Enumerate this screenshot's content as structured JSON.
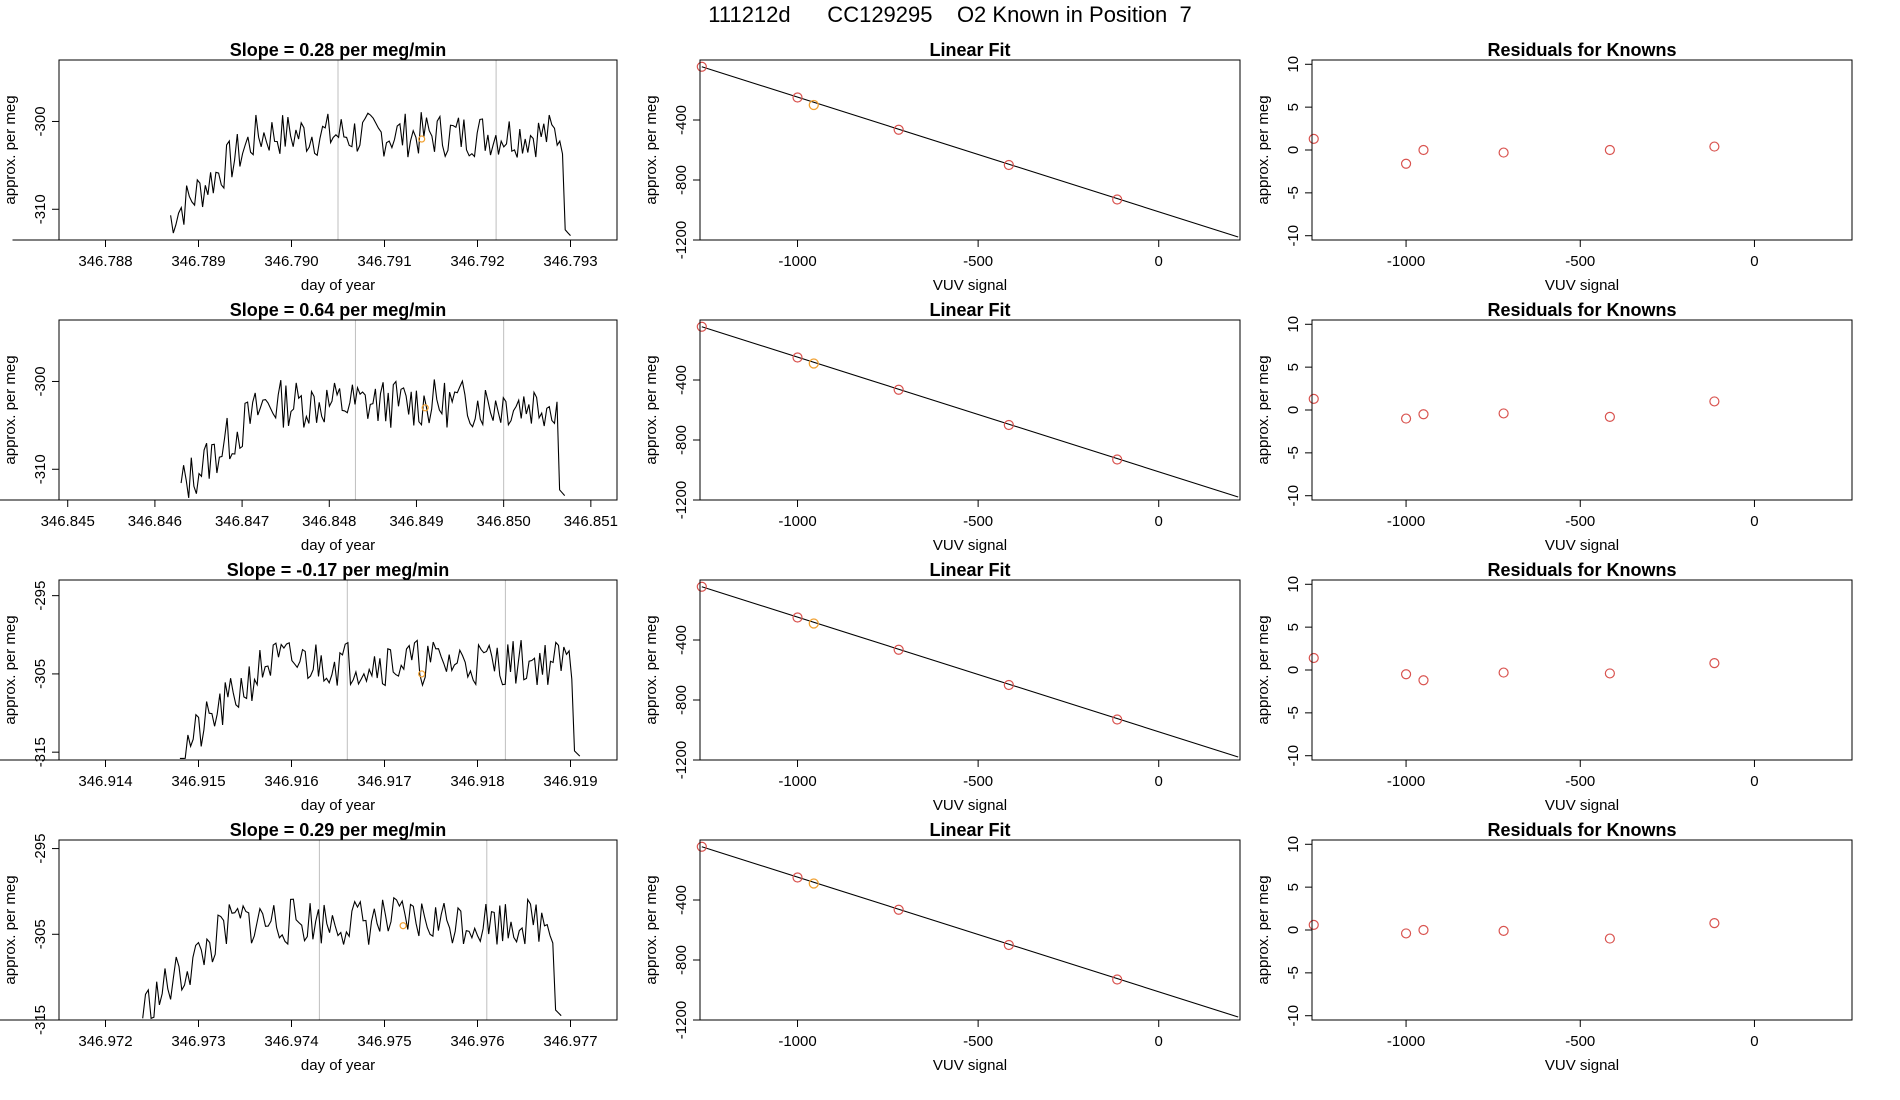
{
  "page_title": "111212d      CC129295    O2 Known in Position  7",
  "colors": {
    "axis": "#000000",
    "line": "#000000",
    "marker": "#d9534f",
    "highlight": "#f0a030",
    "vline": "#bfbfbf"
  },
  "chart_data": [
    {
      "type": "line",
      "title": "Slope =  0.28  per meg/min",
      "xlabel": "day of year",
      "ylabel": "approx. per meg",
      "xlim": [
        346.7875,
        346.7935
      ],
      "ylim": [
        -313.5,
        -293
      ],
      "xticks": [
        346.788,
        346.789,
        346.79,
        346.791,
        346.792,
        346.793
      ],
      "xtick_labels": [
        "346.788",
        "346.789",
        "346.790",
        "346.791",
        "346.792",
        "346.793"
      ],
      "yticks": [
        -310,
        -300
      ],
      "ytick_labels": [
        "-310",
        "-300"
      ],
      "vlines": [
        346.7905,
        346.7922
      ],
      "highlight_point": [
        346.7914,
        -302.0
      ],
      "series": {
        "x_start": 346.7887,
        "x_end": 346.793,
        "seed": 7,
        "base": -301.5,
        "ramp_from": -311,
        "noise": 2.6
      },
      "tail": {
        "x": [
          346.787,
          346.7887
        ],
        "y": -313.5
      }
    },
    {
      "type": "line",
      "title": "Slope =  0.64  per meg/min",
      "xlabel": "day of year",
      "ylabel": "approx. per meg",
      "xlim": [
        346.8449,
        346.8513
      ],
      "ylim": [
        -313.5,
        -293
      ],
      "xticks": [
        346.845,
        346.846,
        346.847,
        346.848,
        346.849,
        346.85,
        346.851
      ],
      "xtick_labels": [
        "346.845",
        "346.846",
        "346.847",
        "346.848",
        "346.849",
        "346.850",
        "346.851"
      ],
      "yticks": [
        -310,
        -300
      ],
      "ytick_labels": [
        "-310",
        "-300"
      ],
      "vlines": [
        346.8483,
        346.85
      ],
      "highlight_point": [
        346.8491,
        -303.0
      ],
      "series": {
        "x_start": 346.8463,
        "x_end": 346.8507,
        "seed": 13,
        "base": -302.5,
        "ramp_from": -312,
        "noise": 2.8
      },
      "tail": {
        "x": [
          346.844,
          346.8463
        ],
        "y": -313.5
      }
    },
    {
      "type": "line",
      "title": "Slope =  -0.17  per meg/min",
      "xlabel": "day of year",
      "ylabel": "approx. per meg",
      "xlim": [
        346.9135,
        346.9195
      ],
      "ylim": [
        -316,
        -293
      ],
      "xticks": [
        346.914,
        346.915,
        346.916,
        346.917,
        346.918,
        346.919
      ],
      "xtick_labels": [
        "346.914",
        "346.915",
        "346.916",
        "346.917",
        "346.918",
        "346.919"
      ],
      "yticks": [
        -315,
        -305,
        -295
      ],
      "ytick_labels": [
        "-315",
        "-305",
        "-295"
      ],
      "vlines": [
        346.9166,
        346.9183
      ],
      "highlight_point": [
        346.9174,
        -305.0
      ],
      "series": {
        "x_start": 346.9148,
        "x_end": 346.9191,
        "seed": 21,
        "base": -303.5,
        "ramp_from": -315,
        "noise": 3.0
      },
      "tail": {
        "x": [
          346.9125,
          346.9148
        ],
        "y": -316
      }
    },
    {
      "type": "line",
      "title": "Slope =  0.29  per meg/min",
      "xlabel": "day of year",
      "ylabel": "approx. per meg",
      "xlim": [
        346.9715,
        346.9775
      ],
      "ylim": [
        -315,
        -294
      ],
      "xticks": [
        346.972,
        346.973,
        346.974,
        346.975,
        346.976,
        346.977
      ],
      "xtick_labels": [
        "346.972",
        "346.973",
        "346.974",
        "346.975",
        "346.976",
        "346.977"
      ],
      "yticks": [
        -315,
        -305,
        -295
      ],
      "ytick_labels": [
        "-315",
        "-305",
        "-295"
      ],
      "vlines": [
        346.9743,
        346.9761
      ],
      "highlight_point": [
        346.9752,
        -304.0
      ],
      "series": {
        "x_start": 346.9724,
        "x_end": 346.9769,
        "seed": 33,
        "base": -303.5,
        "ramp_from": -314,
        "noise": 2.8
      },
      "tail": {
        "x": [
          346.9705,
          346.9724
        ],
        "y": -315
      }
    },
    {
      "type": "scatter",
      "title": "Linear Fit",
      "xlabel": "VUV signal",
      "ylabel": "approx. per meg",
      "xlim": [
        -1270,
        225
      ],
      "ylim": [
        -1200,
        0
      ],
      "xticks": [
        -1000,
        -500,
        0
      ],
      "xtick_labels": [
        "-1000",
        "-500",
        "0"
      ],
      "yticks": [
        -1200,
        -800,
        -400
      ],
      "ytick_labels": [
        "-1200",
        "-800",
        "-400"
      ],
      "fit_line": {
        "x": [
          -1265,
          220
        ],
        "y": [
          -45,
          -1180
        ]
      },
      "points_x": [
        -1265,
        -1000,
        -720,
        -415,
        -115
      ],
      "points_y": [
        -45,
        -250,
        -465,
        -700,
        -930
      ],
      "highlight_x": -955,
      "highlight_y": -300
    },
    {
      "type": "scatter",
      "title": "Linear Fit",
      "xlabel": "VUV signal",
      "ylabel": "approx. per meg",
      "xlim": [
        -1270,
        225
      ],
      "ylim": [
        -1200,
        0
      ],
      "xticks": [
        -1000,
        -500,
        0
      ],
      "xtick_labels": [
        "-1000",
        "-500",
        "0"
      ],
      "yticks": [
        -1200,
        -800,
        -400
      ],
      "ytick_labels": [
        "-1200",
        "-800",
        "-400"
      ],
      "fit_line": {
        "x": [
          -1265,
          220
        ],
        "y": [
          -45,
          -1180
        ]
      },
      "points_x": [
        -1265,
        -1000,
        -720,
        -415,
        -115
      ],
      "points_y": [
        -45,
        -250,
        -465,
        -700,
        -930
      ],
      "highlight_x": -955,
      "highlight_y": -290
    },
    {
      "type": "scatter",
      "title": "Linear Fit",
      "xlabel": "VUV signal",
      "ylabel": "approx. per meg",
      "xlim": [
        -1270,
        225
      ],
      "ylim": [
        -1200,
        0
      ],
      "xticks": [
        -1000,
        -500,
        0
      ],
      "xtick_labels": [
        "-1000",
        "-500",
        "0"
      ],
      "yticks": [
        -1200,
        -800,
        -400
      ],
      "ytick_labels": [
        "-1200",
        "-800",
        "-400"
      ],
      "fit_line": {
        "x": [
          -1265,
          220
        ],
        "y": [
          -45,
          -1180
        ]
      },
      "points_x": [
        -1265,
        -1000,
        -720,
        -415,
        -115
      ],
      "points_y": [
        -45,
        -250,
        -465,
        -700,
        -930
      ],
      "highlight_x": -955,
      "highlight_y": -290
    },
    {
      "type": "scatter",
      "title": "Linear Fit",
      "xlabel": "VUV signal",
      "ylabel": "approx. per meg",
      "xlim": [
        -1270,
        225
      ],
      "ylim": [
        -1200,
        0
      ],
      "xticks": [
        -1000,
        -500,
        0
      ],
      "xtick_labels": [
        "-1000",
        "-500",
        "0"
      ],
      "yticks": [
        -1200,
        -800,
        -400
      ],
      "ytick_labels": [
        "-1200",
        "-800",
        "-400"
      ],
      "fit_line": {
        "x": [
          -1265,
          220
        ],
        "y": [
          -45,
          -1180
        ]
      },
      "points_x": [
        -1265,
        -1000,
        -720,
        -415,
        -115
      ],
      "points_y": [
        -45,
        -250,
        -465,
        -700,
        -930
      ],
      "highlight_x": -955,
      "highlight_y": -290
    },
    {
      "type": "scatter",
      "title": "Residuals for Knowns",
      "xlabel": "VUV signal",
      "ylabel": "approx. per meg",
      "xlim": [
        -1270,
        280
      ],
      "ylim": [
        -10.5,
        10.5
      ],
      "xticks": [
        -1000,
        -500,
        0
      ],
      "xtick_labels": [
        "-1000",
        "-500",
        "0"
      ],
      "yticks": [
        -10,
        -5,
        0,
        5,
        10
      ],
      "ytick_labels": [
        "-10",
        "-5",
        "0",
        "5",
        "10"
      ],
      "points_x": [
        -1265,
        -1000,
        -950,
        -720,
        -415,
        -115
      ],
      "points_y": [
        1.3,
        -1.6,
        0.0,
        -0.3,
        0.0,
        0.4
      ]
    },
    {
      "type": "scatter",
      "title": "Residuals for Knowns",
      "xlabel": "VUV signal",
      "ylabel": "approx. per meg",
      "xlim": [
        -1270,
        280
      ],
      "ylim": [
        -10.5,
        10.5
      ],
      "xticks": [
        -1000,
        -500,
        0
      ],
      "xtick_labels": [
        "-1000",
        "-500",
        "0"
      ],
      "yticks": [
        -10,
        -5,
        0,
        5,
        10
      ],
      "ytick_labels": [
        "-10",
        "-5",
        "0",
        "5",
        "10"
      ],
      "points_x": [
        -1265,
        -1000,
        -950,
        -720,
        -415,
        -115
      ],
      "points_y": [
        1.3,
        -1.0,
        -0.5,
        -0.4,
        -0.8,
        1.0
      ]
    },
    {
      "type": "scatter",
      "title": "Residuals for Knowns",
      "xlabel": "VUV signal",
      "ylabel": "approx. per meg",
      "xlim": [
        -1270,
        280
      ],
      "ylim": [
        -10.5,
        10.5
      ],
      "xticks": [
        -1000,
        -500,
        0
      ],
      "xtick_labels": [
        "-1000",
        "-500",
        "0"
      ],
      "yticks": [
        -10,
        -5,
        0,
        5,
        10
      ],
      "ytick_labels": [
        "-10",
        "-5",
        "0",
        "5",
        "10"
      ],
      "points_x": [
        -1265,
        -1000,
        -950,
        -720,
        -415,
        -115
      ],
      "points_y": [
        1.4,
        -0.5,
        -1.2,
        -0.3,
        -0.4,
        0.8
      ]
    },
    {
      "type": "scatter",
      "title": "Residuals for Knowns",
      "xlabel": "VUV signal",
      "ylabel": "approx. per meg",
      "xlim": [
        -1270,
        280
      ],
      "ylim": [
        -10.5,
        10.5
      ],
      "xticks": [
        -1000,
        -500,
        0
      ],
      "xtick_labels": [
        "-1000",
        "-500",
        "0"
      ],
      "yticks": [
        -10,
        -5,
        0,
        5,
        10
      ],
      "ytick_labels": [
        "-10",
        "-5",
        "0",
        "5",
        "10"
      ],
      "points_x": [
        -1265,
        -1000,
        -950,
        -720,
        -415,
        -115
      ],
      "points_y": [
        0.6,
        -0.4,
        0.0,
        -0.1,
        -1.0,
        0.8
      ]
    }
  ]
}
